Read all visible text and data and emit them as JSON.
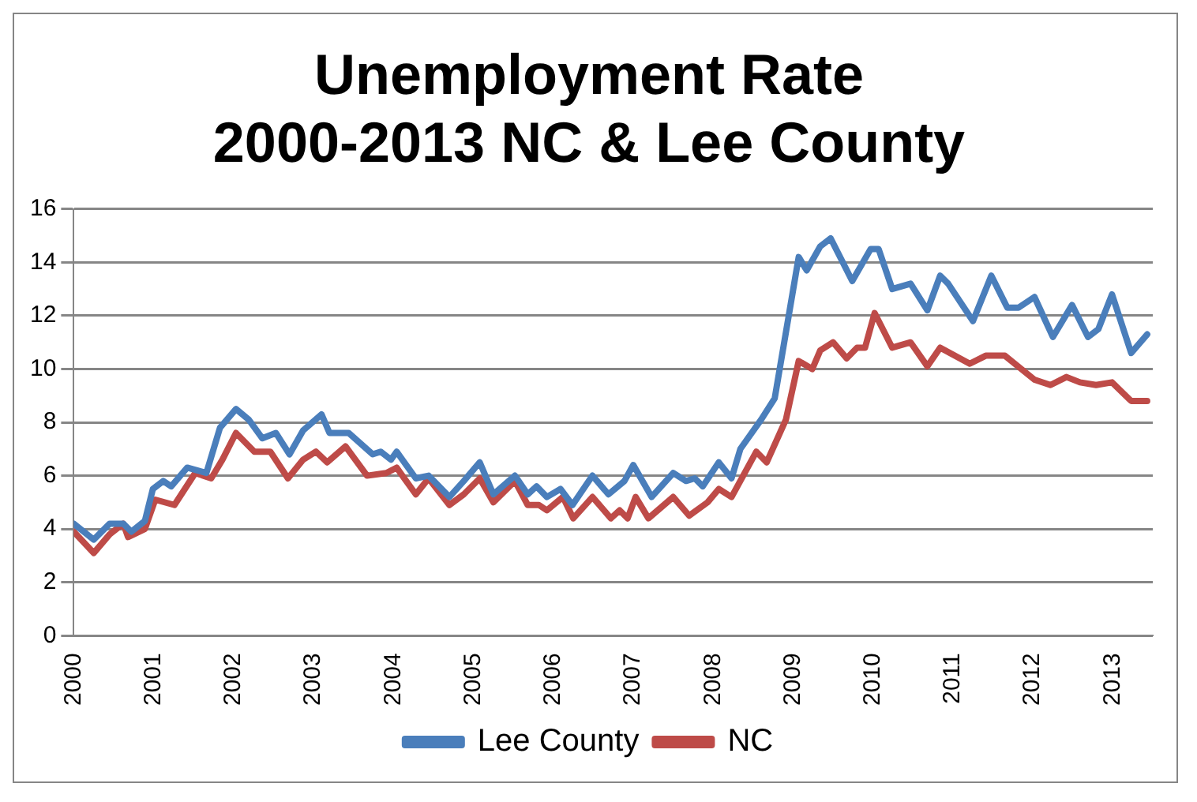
{
  "chart_data": {
    "type": "line",
    "title": "Unemployment Rate\n2000-2013 NC & Lee County",
    "xlim": [
      2000,
      2013.5
    ],
    "xticks": [
      2000,
      2001,
      2002,
      2003,
      2004,
      2005,
      2006,
      2007,
      2008,
      2009,
      2010,
      2011,
      2012,
      2013
    ],
    "ylim": [
      0,
      16
    ],
    "yticks": [
      0,
      2,
      4,
      6,
      8,
      10,
      12,
      14,
      16
    ],
    "grid": "y",
    "legend": "bottom",
    "marker": "none",
    "line_style": "solid",
    "series": [
      {
        "name": "Lee County",
        "color": "#4a7ebb",
        "x": [
          2000,
          2000.25,
          2000.45,
          2000.62,
          2000.72,
          2000.89,
          2000.99,
          2001.12,
          2001.22,
          2001.42,
          2001.66,
          2001.83,
          2002.03,
          2002.19,
          2002.36,
          2002.53,
          2002.7,
          2002.87,
          2003.1,
          2003.2,
          2003.44,
          2003.74,
          2003.84,
          2003.97,
          2004.04,
          2004.28,
          2004.44,
          2004.7,
          2004.88,
          2005.08,
          2005.25,
          2005.52,
          2005.68,
          2005.79,
          2005.92,
          2006.09,
          2006.24,
          2006.49,
          2006.69,
          2006.89,
          2007,
          2007.23,
          2007.5,
          2007.66,
          2007.77,
          2007.87,
          2008.07,
          2008.23,
          2008.34,
          2008.6,
          2008.77,
          2009.07,
          2009.17,
          2009.34,
          2009.47,
          2009.74,
          2009.97,
          2010.07,
          2010.24,
          2010.47,
          2010.68,
          2010.84,
          2010.94,
          2011.25,
          2011.48,
          2011.68,
          2011.82,
          2012.02,
          2012.25,
          2012.49,
          2012.69,
          2012.82,
          2012.99,
          2013.23,
          2013.43
        ],
        "values": [
          4.2,
          3.6,
          4.2,
          4.2,
          3.9,
          4.3,
          5.5,
          5.8,
          5.6,
          6.3,
          6.1,
          7.8,
          8.5,
          8.1,
          7.4,
          7.6,
          6.8,
          7.7,
          8.3,
          7.6,
          7.6,
          6.8,
          6.9,
          6.6,
          6.9,
          5.9,
          6.0,
          5.2,
          5.8,
          6.5,
          5.3,
          6.0,
          5.3,
          5.6,
          5.2,
          5.5,
          4.9,
          6.0,
          5.3,
          5.8,
          6.4,
          5.2,
          6.1,
          5.8,
          5.9,
          5.6,
          6.5,
          5.9,
          7.0,
          8.1,
          8.9,
          14.2,
          13.7,
          14.6,
          14.9,
          13.3,
          14.5,
          14.5,
          13.0,
          13.2,
          12.2,
          13.5,
          13.2,
          11.8,
          13.5,
          12.3,
          12.3,
          12.7,
          11.2,
          12.4,
          11.2,
          11.5,
          12.8,
          10.6,
          11.3
        ]
      },
      {
        "name": "NC",
        "color": "#be4b48",
        "x": [
          2000,
          2000.25,
          2000.45,
          2000.62,
          2000.68,
          2000.89,
          2001.02,
          2001.26,
          2001.52,
          2001.72,
          2001.86,
          2002.03,
          2002.26,
          2002.46,
          2002.68,
          2002.87,
          2003.03,
          2003.17,
          2003.4,
          2003.67,
          2003.91,
          2004.04,
          2004.28,
          2004.44,
          2004.7,
          2004.88,
          2005.08,
          2005.25,
          2005.52,
          2005.68,
          2005.82,
          2005.92,
          2006.12,
          2006.25,
          2006.49,
          2006.72,
          2006.83,
          2006.93,
          2007.03,
          2007.19,
          2007.5,
          2007.7,
          2007.93,
          2008.07,
          2008.23,
          2008.54,
          2008.67,
          2008.91,
          2009.07,
          2009.24,
          2009.34,
          2009.5,
          2009.67,
          2009.8,
          2009.9,
          2010.02,
          2010.24,
          2010.47,
          2010.68,
          2010.84,
          2011.21,
          2011.41,
          2011.65,
          2012.02,
          2012.22,
          2012.42,
          2012.59,
          2012.79,
          2012.99,
          2013.23,
          2013.43
        ],
        "values": [
          3.9,
          3.1,
          3.8,
          4.2,
          3.7,
          4.0,
          5.1,
          4.9,
          6.1,
          5.9,
          6.6,
          7.6,
          6.9,
          6.9,
          5.9,
          6.6,
          6.9,
          6.5,
          7.1,
          6.0,
          6.1,
          6.3,
          5.3,
          5.9,
          4.9,
          5.3,
          5.9,
          5.0,
          5.8,
          4.9,
          4.9,
          4.7,
          5.2,
          4.4,
          5.2,
          4.4,
          4.7,
          4.4,
          5.2,
          4.4,
          5.2,
          4.5,
          5.0,
          5.5,
          5.2,
          6.9,
          6.5,
          8.1,
          10.3,
          10.0,
          10.7,
          11.0,
          10.4,
          10.8,
          10.8,
          12.1,
          10.8,
          11.0,
          10.1,
          10.8,
          10.2,
          10.5,
          10.5,
          9.6,
          9.4,
          9.7,
          9.5,
          9.4,
          9.5,
          8.8,
          8.8
        ]
      }
    ]
  }
}
